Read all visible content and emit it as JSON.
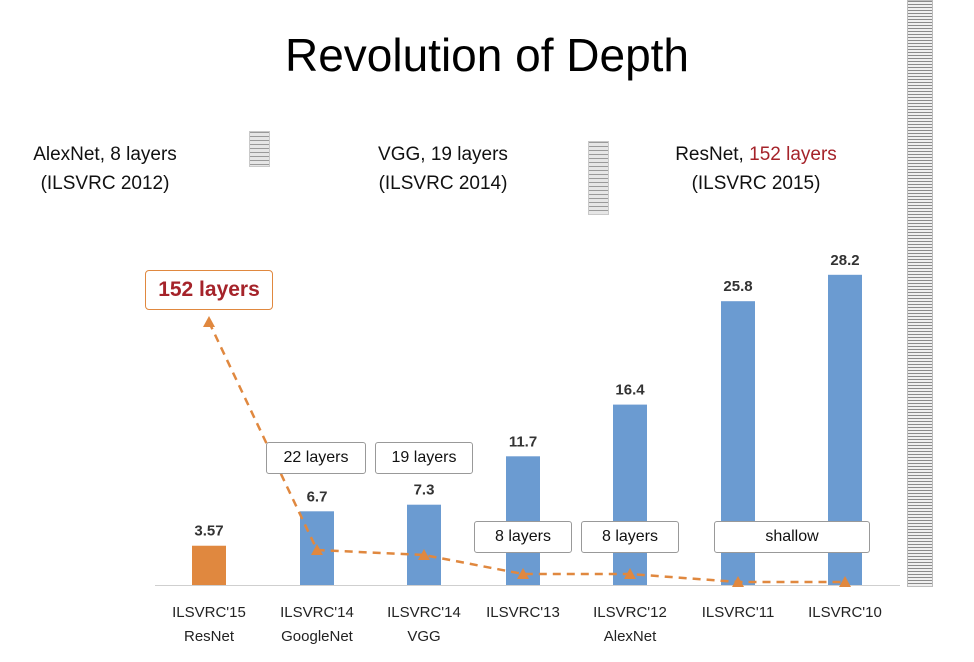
{
  "slide": {
    "title": "Revolution of Depth",
    "captions": {
      "alexnet": {
        "name": "AlexNet, 8 layers",
        "event": "(ILSVRC 2012)"
      },
      "vgg": {
        "name": "VGG, 19 layers",
        "event": "(ILSVRC 2014)"
      },
      "resnet": {
        "name_prefix": "ResNet, ",
        "name_highlight": "152 layers",
        "event": "(ILSVRC 2015)"
      }
    }
  },
  "colors": {
    "bar_blue": "#6b9bd1",
    "bar_orange": "#e0883f",
    "trend_line": "#e0883f",
    "highlight_red": "#a5232a"
  },
  "chart_data": {
    "type": "bar",
    "title": "",
    "xlabel": "",
    "ylabel": "",
    "ylim": [
      0,
      30
    ],
    "grid": false,
    "categories": [
      [
        "ILSVRC'15",
        "ResNet"
      ],
      [
        "ILSVRC'14",
        "GoogleNet"
      ],
      [
        "ILSVRC'14",
        "VGG"
      ],
      [
        "ILSVRC'13"
      ],
      [
        "ILSVRC'12",
        "AlexNet"
      ],
      [
        "ILSVRC'11"
      ],
      [
        "ILSVRC'10"
      ]
    ],
    "values": [
      3.57,
      6.7,
      7.3,
      11.7,
      16.4,
      25.8,
      28.2
    ],
    "value_labels": [
      "3.57",
      "6.7",
      "7.3",
      "11.7",
      "16.4",
      "25.8",
      "28.2"
    ],
    "bar_colors": [
      "orange",
      "blue",
      "blue",
      "blue",
      "blue",
      "blue",
      "blue"
    ],
    "depth_labels": [
      "152 layers",
      "22 layers",
      "19 layers",
      "8 layers",
      "8 layers",
      "shallow",
      "shallow"
    ]
  }
}
